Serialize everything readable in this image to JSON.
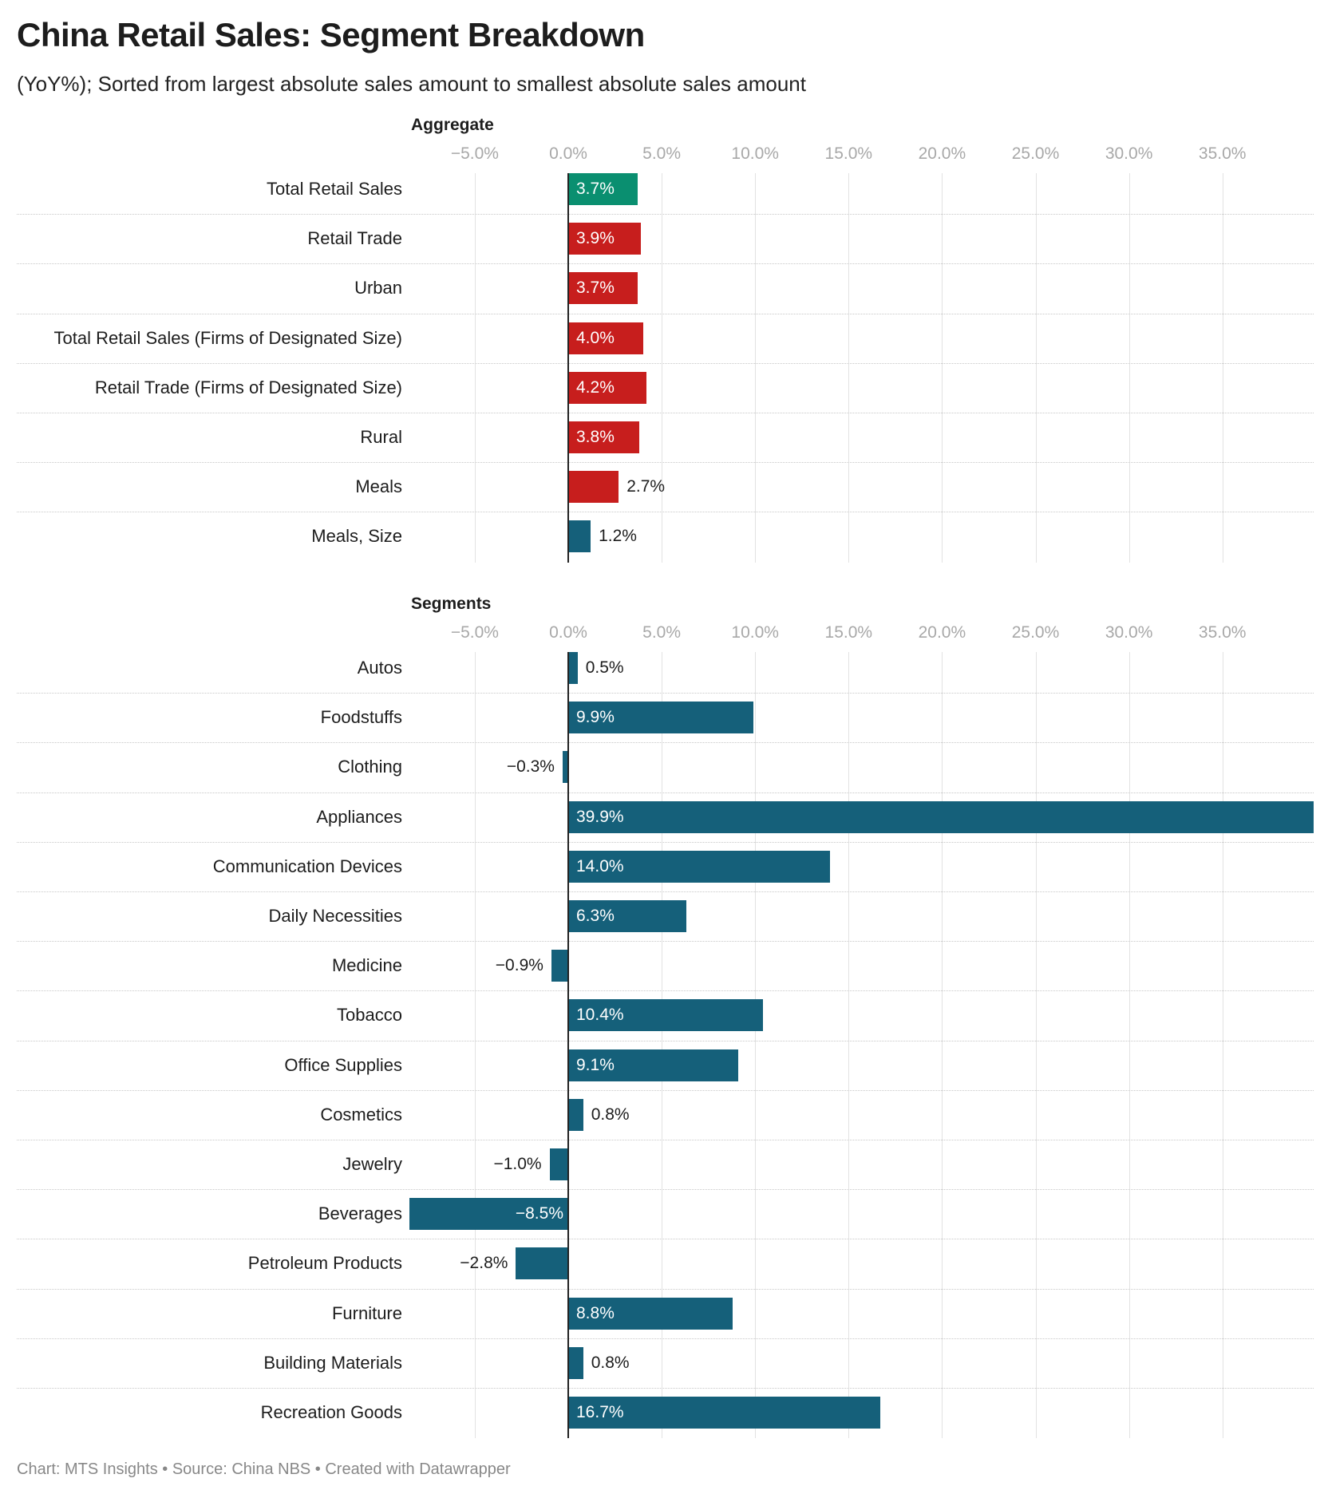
{
  "title": "China Retail Sales: Segment Breakdown",
  "subtitle": "(YoY%); Sorted from largest absolute sales amount to smallest absolute sales amount",
  "footer": "Chart: MTS Insights • Source: China NBS • Created with Datawrapper",
  "colors": {
    "green": "#0a8f70",
    "red": "#c71e1d",
    "blue": "#15607a"
  },
  "chart_data": [
    {
      "type": "bar",
      "title": "Aggregate",
      "orientation": "horizontal",
      "tick_labels": [
        "−5.0%",
        "0.0%",
        "5.0%",
        "10.0%",
        "15.0%",
        "20.0%",
        "25.0%",
        "30.0%",
        "35.0%"
      ],
      "ticks": [
        -5,
        0,
        5,
        10,
        15,
        20,
        25,
        30,
        35
      ],
      "xlim": [
        -5,
        39.9
      ],
      "categories": [
        "Total Retail Sales",
        "Retail Trade",
        "Urban",
        "Total Retail Sales (Firms of Designated Size)",
        "Retail Trade (Firms of Designated Size)",
        "Rural",
        "Meals",
        "Meals, Size"
      ],
      "values": [
        3.7,
        3.9,
        3.7,
        4.0,
        4.2,
        3.8,
        2.7,
        1.2
      ],
      "value_labels": [
        "3.7%",
        "3.9%",
        "3.7%",
        "4.0%",
        "4.2%",
        "3.8%",
        "2.7%",
        "1.2%"
      ],
      "bar_colors": [
        "green",
        "red",
        "red",
        "red",
        "red",
        "red",
        "red",
        "blue"
      ]
    },
    {
      "type": "bar",
      "title": "Segments",
      "orientation": "horizontal",
      "tick_labels": [
        "−5.0%",
        "0.0%",
        "5.0%",
        "10.0%",
        "15.0%",
        "20.0%",
        "25.0%",
        "30.0%",
        "35.0%"
      ],
      "ticks": [
        -5,
        0,
        5,
        10,
        15,
        20,
        25,
        30,
        35
      ],
      "xlim": [
        -5,
        39.9
      ],
      "categories": [
        "Autos",
        "Foodstuffs",
        "Clothing",
        "Appliances",
        "Communication Devices",
        "Daily Necessities",
        "Medicine",
        "Tobacco",
        "Office Supplies",
        "Cosmetics",
        "Jewelry",
        "Beverages",
        "Petroleum Products",
        "Furniture",
        "Building Materials",
        "Recreation Goods"
      ],
      "values": [
        0.5,
        9.9,
        -0.3,
        39.9,
        14.0,
        6.3,
        -0.9,
        10.4,
        9.1,
        0.8,
        -1.0,
        -8.5,
        -2.8,
        8.8,
        0.8,
        16.7
      ],
      "value_labels": [
        "0.5%",
        "9.9%",
        "−0.3%",
        "39.9%",
        "14.0%",
        "6.3%",
        "−0.9%",
        "10.4%",
        "9.1%",
        "0.8%",
        "−1.0%",
        "−8.5%",
        "−2.8%",
        "8.8%",
        "0.8%",
        "16.7%"
      ],
      "bar_colors": [
        "blue",
        "blue",
        "blue",
        "blue",
        "blue",
        "blue",
        "blue",
        "blue",
        "blue",
        "blue",
        "blue",
        "blue",
        "blue",
        "blue",
        "blue",
        "blue"
      ]
    }
  ]
}
